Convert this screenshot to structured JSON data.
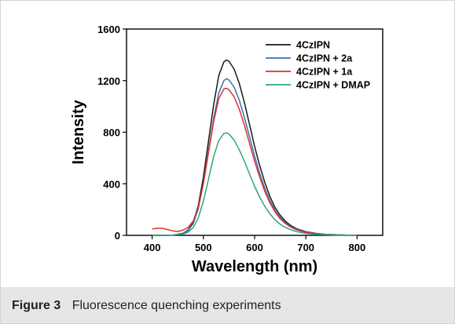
{
  "caption": {
    "label": "Figure 3",
    "text": "Fluorescence quenching experiments"
  },
  "chart_data": {
    "type": "line",
    "xlabel": "Wavelength (nm)",
    "ylabel": "Intensity",
    "xlim": [
      350,
      850
    ],
    "ylim": [
      0,
      1600
    ],
    "xticks": [
      400,
      500,
      600,
      700,
      800
    ],
    "yticks": [
      0,
      400,
      800,
      1200,
      1600
    ],
    "grid": false,
    "legend_position": "top-right",
    "series": [
      {
        "name": "4CzIPN",
        "color": "#1a1a1a",
        "x": [
          400,
          420,
          440,
          460,
          470,
          480,
          490,
          500,
          510,
          520,
          530,
          540,
          545,
          550,
          560,
          570,
          580,
          590,
          600,
          610,
          620,
          630,
          640,
          650,
          660,
          670,
          680,
          690,
          700,
          720,
          740,
          760,
          780,
          800
        ],
        "y": [
          0,
          0,
          2,
          15,
          40,
          100,
          230,
          450,
          730,
          1010,
          1240,
          1345,
          1360,
          1350,
          1290,
          1180,
          1030,
          860,
          690,
          540,
          410,
          300,
          215,
          155,
          110,
          78,
          55,
          40,
          28,
          15,
          8,
          4,
          2,
          1
        ]
      },
      {
        "name": "4CzIPN + 2a",
        "color": "#3c6fb4",
        "x": [
          400,
          420,
          440,
          460,
          470,
          480,
          490,
          500,
          510,
          520,
          530,
          540,
          545,
          550,
          560,
          570,
          580,
          590,
          600,
          610,
          620,
          630,
          640,
          650,
          660,
          670,
          680,
          690,
          700,
          720,
          740,
          760,
          780,
          800
        ],
        "y": [
          0,
          0,
          2,
          14,
          36,
          90,
          205,
          405,
          655,
          905,
          1105,
          1200,
          1215,
          1205,
          1150,
          1050,
          915,
          765,
          615,
          480,
          365,
          268,
          192,
          138,
          98,
          70,
          50,
          36,
          25,
          13,
          7,
          4,
          2,
          1
        ]
      },
      {
        "name": "4CzIPN + 1a",
        "color": "#e03030",
        "x": [
          400,
          410,
          420,
          430,
          440,
          450,
          460,
          470,
          480,
          490,
          500,
          510,
          520,
          530,
          540,
          545,
          550,
          560,
          570,
          580,
          590,
          600,
          610,
          620,
          630,
          640,
          650,
          660,
          670,
          680,
          690,
          700,
          720,
          740,
          760,
          780,
          800
        ],
        "y": [
          50,
          55,
          55,
          45,
          35,
          30,
          40,
          60,
          110,
          215,
          400,
          640,
          880,
          1060,
          1135,
          1140,
          1130,
          1075,
          980,
          855,
          715,
          575,
          450,
          340,
          250,
          180,
          128,
          92,
          65,
          46,
          33,
          23,
          12,
          6,
          3,
          2,
          1
        ]
      },
      {
        "name": "4CzIPN + DMAP",
        "color": "#2aa77a",
        "x": [
          400,
          420,
          440,
          460,
          470,
          480,
          490,
          500,
          510,
          520,
          530,
          540,
          545,
          550,
          560,
          570,
          580,
          590,
          600,
          610,
          620,
          630,
          640,
          650,
          660,
          670,
          680,
          690,
          700,
          720,
          740,
          760,
          780,
          800
        ],
        "y": [
          0,
          0,
          1,
          9,
          24,
          60,
          135,
          265,
          435,
          610,
          735,
          790,
          795,
          785,
          740,
          665,
          575,
          475,
          380,
          295,
          225,
          165,
          120,
          86,
          62,
          44,
          31,
          22,
          15,
          8,
          4,
          2,
          1,
          0
        ]
      }
    ]
  }
}
